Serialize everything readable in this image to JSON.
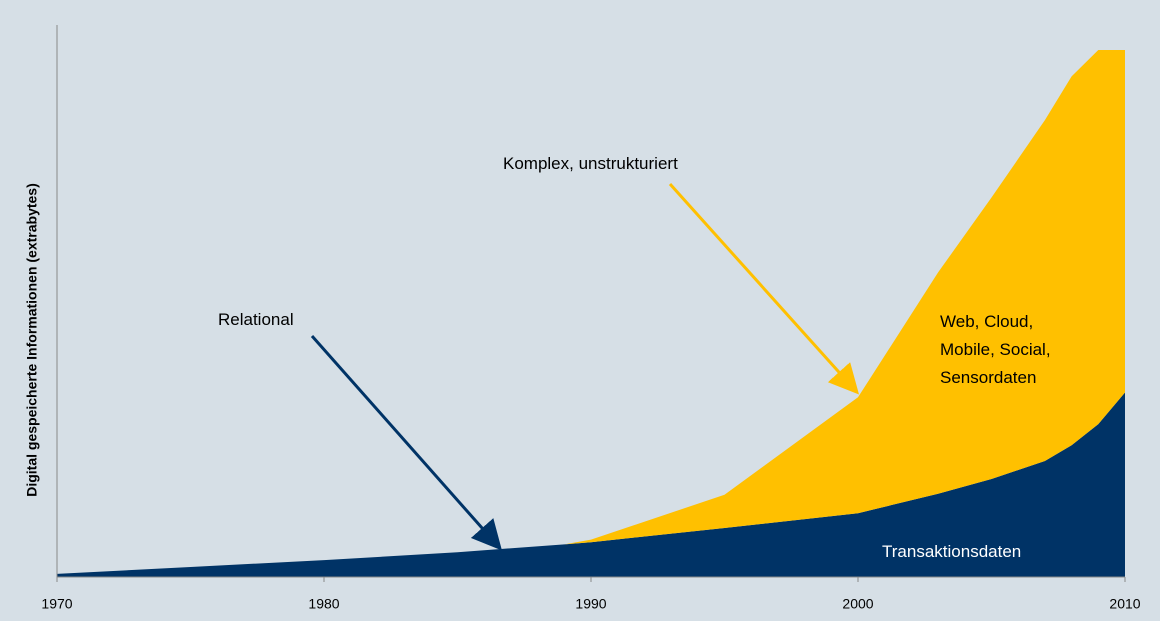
{
  "chart_data": {
    "type": "stacked_area",
    "y_axis_label": "Digital gespeicherte Informationen (extrabytes)",
    "x": [
      1970,
      1975,
      1980,
      1985,
      1989,
      1990,
      1995,
      2000,
      2003,
      2005,
      2007,
      2008,
      2009,
      2010
    ],
    "series": [
      {
        "name": "Transaktionsdaten",
        "color": "#003366",
        "values": [
          0.6,
          1.9,
          3.2,
          4.7,
          6.2,
          6.6,
          9.3,
          12.1,
          15.8,
          18.6,
          22,
          25,
          29,
          35
        ]
      },
      {
        "name": "Web, Cloud, Mobile, Social, Sensordaten",
        "color": "#ffc000",
        "values": [
          0,
          0,
          0,
          0,
          0,
          0.5,
          6.3,
          22,
          42,
          53.4,
          64.7,
          70,
          71,
          65
        ]
      }
    ],
    "xlim": [
      1970,
      2010
    ],
    "xticks": [
      1970,
      1980,
      1990,
      2000,
      2010
    ],
    "ylim": [
      0,
      100
    ],
    "annotations": [
      {
        "text": "Relational",
        "color": "#003366"
      },
      {
        "text": "Komplex, unstrukturiert",
        "color": "#ffc000"
      }
    ]
  }
}
